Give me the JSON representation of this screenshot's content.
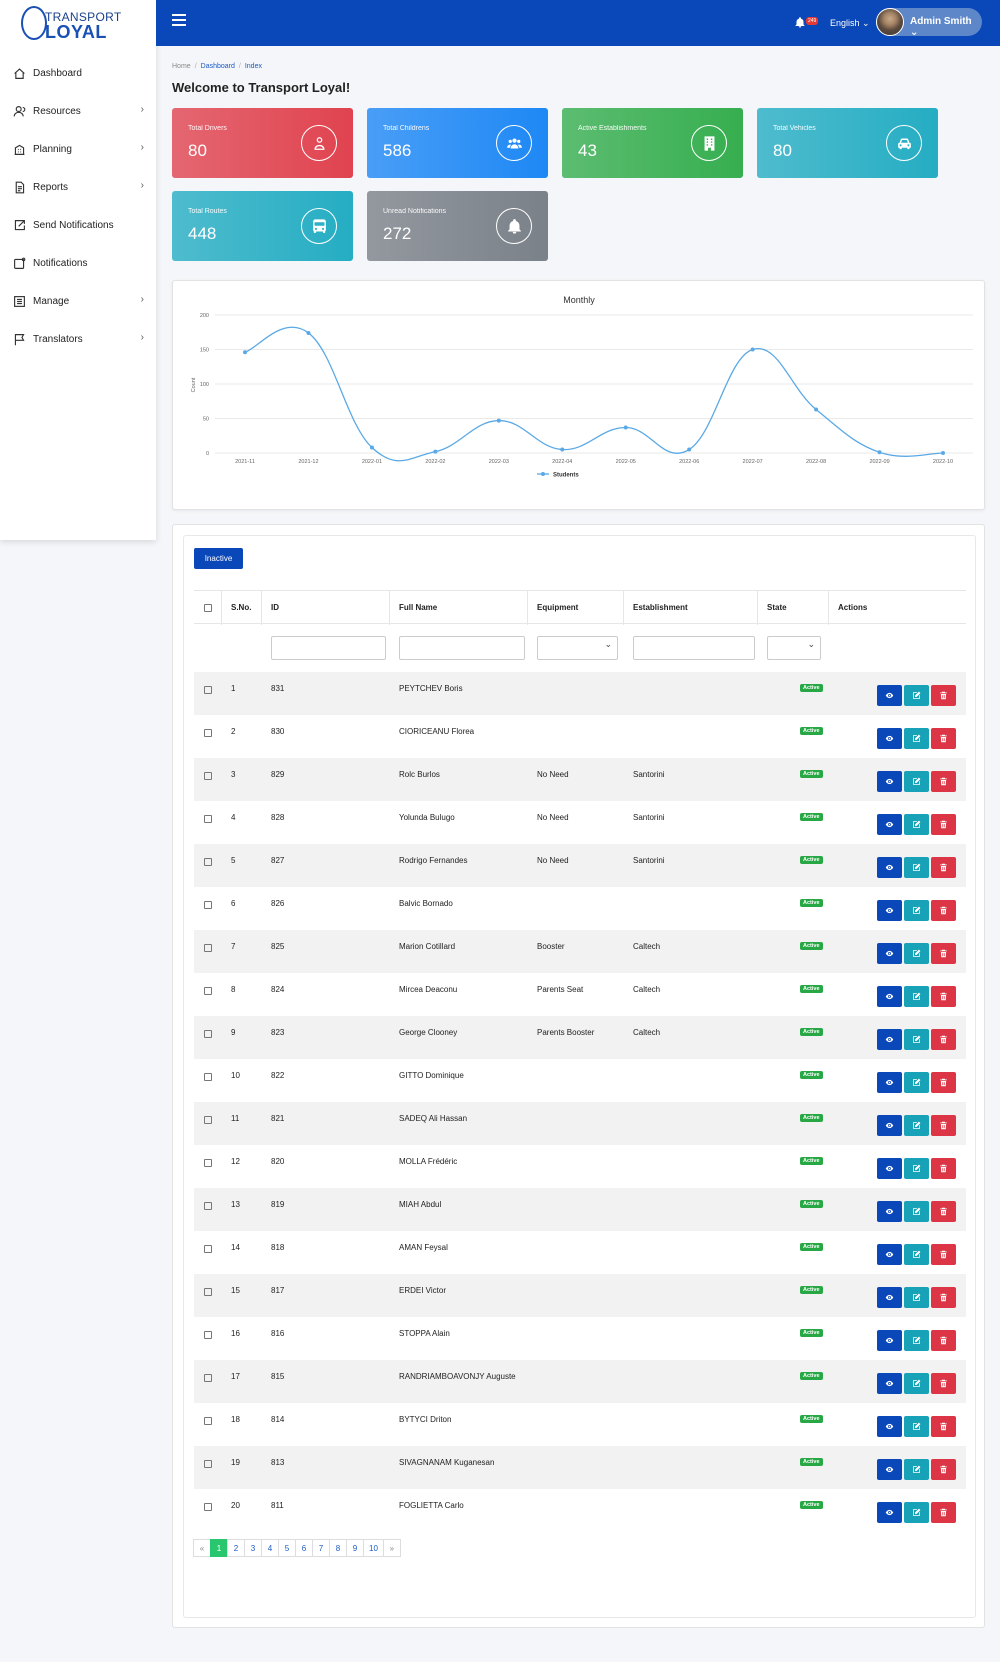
{
  "brand": {
    "line1": "TRANSPORT",
    "line2": "LOYAL"
  },
  "sidebar": {
    "items": [
      {
        "label": "Dashboard",
        "icon": "home-icon",
        "has_submenu": false
      },
      {
        "label": "Resources",
        "icon": "users-icon",
        "has_submenu": true
      },
      {
        "label": "Planning",
        "icon": "building-icon",
        "has_submenu": true
      },
      {
        "label": "Reports",
        "icon": "file-icon",
        "has_submenu": true
      },
      {
        "label": "Send Notifications",
        "icon": "send-icon",
        "has_submenu": false
      },
      {
        "label": "Notifications",
        "icon": "notification-icon",
        "has_submenu": false
      },
      {
        "label": "Manage",
        "icon": "list-icon",
        "has_submenu": true
      },
      {
        "label": "Translators",
        "icon": "flag-icon",
        "has_submenu": true
      }
    ]
  },
  "topbar": {
    "bell_badge": "249",
    "language": "English ⌄",
    "user": "Admin Smith ⌄"
  },
  "breadcrumb": {
    "home": "Home",
    "dashboard": "Dashboard",
    "index": "Index"
  },
  "page_title": "Welcome to Transport Loyal!",
  "cards": [
    {
      "label": "Total Drivers",
      "value": "80",
      "icon": "user-icon",
      "color": "#e0434f"
    },
    {
      "label": "Total Childrens",
      "value": "586",
      "icon": "group-icon",
      "color": "#1e88f5"
    },
    {
      "label": "Active Establishments",
      "value": "43",
      "icon": "building-icon",
      "color": "#36ae4f"
    },
    {
      "label": "Total Vehicles",
      "value": "80",
      "icon": "car-icon",
      "color": "#25adc3"
    },
    {
      "label": "Total Routes",
      "value": "448",
      "icon": "bus-icon",
      "color": "#25adc3"
    },
    {
      "label": "Unread Notifications",
      "value": "272",
      "icon": "bell-icon",
      "color": "#7b8189"
    }
  ],
  "chart_data": {
    "type": "line",
    "title": "Monthly",
    "ylabel": "Count",
    "xlabel": "",
    "ylim": [
      0,
      200
    ],
    "yticks": [
      "0",
      "50",
      "100",
      "150",
      "200"
    ],
    "categories": [
      "2021-11",
      "2021-12",
      "2022-01",
      "2022-02",
      "2022-03",
      "2022-04",
      "2022-05",
      "2022-06",
      "2022-07",
      "2022-08",
      "2022-09",
      "2022-10"
    ],
    "series": [
      {
        "name": "Students",
        "values": [
          146,
          174,
          8,
          2,
          47,
          5,
          37,
          5,
          150,
          63,
          1,
          0
        ],
        "color": "#5aa9e6"
      }
    ],
    "grid": true,
    "legend": "bottom"
  },
  "table": {
    "inactive_button": "Inactive",
    "headers": {
      "sno": "S.No.",
      "id": "ID",
      "name": "Full Name",
      "equipment": "Equipment",
      "establishment": "Establishment",
      "state": "State",
      "actions": "Actions"
    },
    "state_label": "Active",
    "rows": [
      {
        "sno": "1",
        "id": "831",
        "name": "PEYTCHEV Boris",
        "equipment": "",
        "establishment": ""
      },
      {
        "sno": "2",
        "id": "830",
        "name": "CIORICEANU Florea",
        "equipment": "",
        "establishment": ""
      },
      {
        "sno": "3",
        "id": "829",
        "name": "Rolc Burlos",
        "equipment": "No Need",
        "establishment": "Santorini"
      },
      {
        "sno": "4",
        "id": "828",
        "name": "Yolunda Bulugo",
        "equipment": "No Need",
        "establishment": "Santorini"
      },
      {
        "sno": "5",
        "id": "827",
        "name": "Rodrigo Fernandes",
        "equipment": "No Need",
        "establishment": "Santorini"
      },
      {
        "sno": "6",
        "id": "826",
        "name": "Balvic Bornado",
        "equipment": "",
        "establishment": ""
      },
      {
        "sno": "7",
        "id": "825",
        "name": "Marion Cotillard",
        "equipment": "Booster",
        "establishment": "Caltech"
      },
      {
        "sno": "8",
        "id": "824",
        "name": "Mircea Deaconu",
        "equipment": "Parents Seat",
        "establishment": "Caltech"
      },
      {
        "sno": "9",
        "id": "823",
        "name": "George Clooney",
        "equipment": "Parents Booster",
        "establishment": "Caltech"
      },
      {
        "sno": "10",
        "id": "822",
        "name": "GITTO Dominique",
        "equipment": "",
        "establishment": ""
      },
      {
        "sno": "11",
        "id": "821",
        "name": "SADEQ Ali Hassan",
        "equipment": "",
        "establishment": ""
      },
      {
        "sno": "12",
        "id": "820",
        "name": "MOLLA Frédéric",
        "equipment": "",
        "establishment": ""
      },
      {
        "sno": "13",
        "id": "819",
        "name": "MIAH Abdul",
        "equipment": "",
        "establishment": ""
      },
      {
        "sno": "14",
        "id": "818",
        "name": "AMAN Feysal",
        "equipment": "",
        "establishment": ""
      },
      {
        "sno": "15",
        "id": "817",
        "name": "ERDEI Victor",
        "equipment": "",
        "establishment": ""
      },
      {
        "sno": "16",
        "id": "816",
        "name": "STOPPA Alain",
        "equipment": "",
        "establishment": ""
      },
      {
        "sno": "17",
        "id": "815",
        "name": "RANDRIAMBOAVONJY Auguste",
        "equipment": "",
        "establishment": ""
      },
      {
        "sno": "18",
        "id": "814",
        "name": "BYTYCI Driton",
        "equipment": "",
        "establishment": ""
      },
      {
        "sno": "19",
        "id": "813",
        "name": "SIVAGNANAM Kuganesan",
        "equipment": "",
        "establishment": ""
      },
      {
        "sno": "20",
        "id": "811",
        "name": "FOGLIETTA Carlo",
        "equipment": "",
        "establishment": ""
      }
    ]
  },
  "pagination": {
    "prev": "«",
    "next": "»",
    "pages": [
      "1",
      "2",
      "3",
      "4",
      "5",
      "6",
      "7",
      "8",
      "9",
      "10"
    ],
    "current": "1"
  }
}
